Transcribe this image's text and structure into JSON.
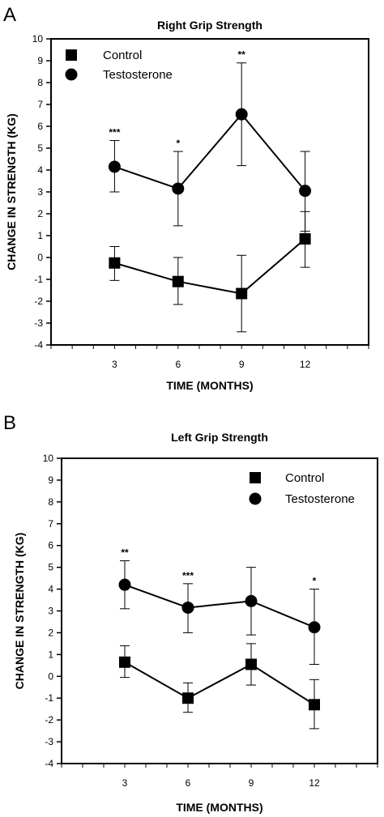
{
  "chart_data": [
    {
      "type": "line",
      "panel": "A",
      "title": "Right Grip Strength",
      "xlabel": "TIME (MONTHS)",
      "ylabel": "CHANGE IN STRENGTH (KG)",
      "xlim": [
        0,
        15
      ],
      "ylim": [
        -4,
        10
      ],
      "x": [
        3,
        6,
        9,
        12
      ],
      "yticks": [
        -4,
        -3,
        -2,
        -1,
        0,
        1,
        2,
        3,
        4,
        5,
        6,
        7,
        8,
        9,
        10
      ],
      "legend_position": "top-left",
      "grid": false,
      "series": [
        {
          "name": "Control",
          "marker": "square",
          "values": [
            -0.25,
            -1.1,
            -1.65,
            0.85
          ],
          "err_low": [
            -1.05,
            -2.15,
            -3.4,
            -0.45
          ],
          "err_high": [
            0.5,
            0.0,
            0.1,
            2.1
          ]
        },
        {
          "name": "Testosterone",
          "marker": "circle",
          "values": [
            4.15,
            3.15,
            6.55,
            3.05
          ],
          "err_low": [
            3.0,
            1.45,
            4.2,
            1.2
          ],
          "err_high": [
            5.35,
            4.85,
            8.9,
            4.85
          ]
        }
      ],
      "annotations": [
        {
          "x": 3,
          "text": "***"
        },
        {
          "x": 6,
          "text": "*"
        },
        {
          "x": 9,
          "text": "**"
        }
      ]
    },
    {
      "type": "line",
      "panel": "B",
      "title": "Left Grip Strength",
      "xlabel": "TIME (MONTHS)",
      "ylabel": "CHANGE IN STRENGTH (KG)",
      "xlim": [
        0,
        15
      ],
      "ylim": [
        -4,
        10
      ],
      "x": [
        3,
        6,
        9,
        12
      ],
      "yticks": [
        -4,
        -3,
        -2,
        -1,
        0,
        1,
        2,
        3,
        4,
        5,
        6,
        7,
        8,
        9,
        10
      ],
      "legend_position": "top-right",
      "grid": false,
      "series": [
        {
          "name": "Control",
          "marker": "square",
          "values": [
            0.65,
            -1.0,
            0.55,
            -1.3
          ],
          "err_low": [
            -0.05,
            -1.65,
            -0.4,
            -2.4
          ],
          "err_high": [
            1.4,
            -0.3,
            1.5,
            -0.15
          ]
        },
        {
          "name": "Testosterone",
          "marker": "circle",
          "values": [
            4.2,
            3.15,
            3.45,
            2.25
          ],
          "err_low": [
            3.1,
            2.0,
            1.9,
            0.55
          ],
          "err_high": [
            5.3,
            4.25,
            5.0,
            4.0
          ]
        }
      ],
      "annotations": [
        {
          "x": 3,
          "text": "**"
        },
        {
          "x": 6,
          "text": "***"
        },
        {
          "x": 12,
          "text": "*"
        }
      ]
    }
  ]
}
